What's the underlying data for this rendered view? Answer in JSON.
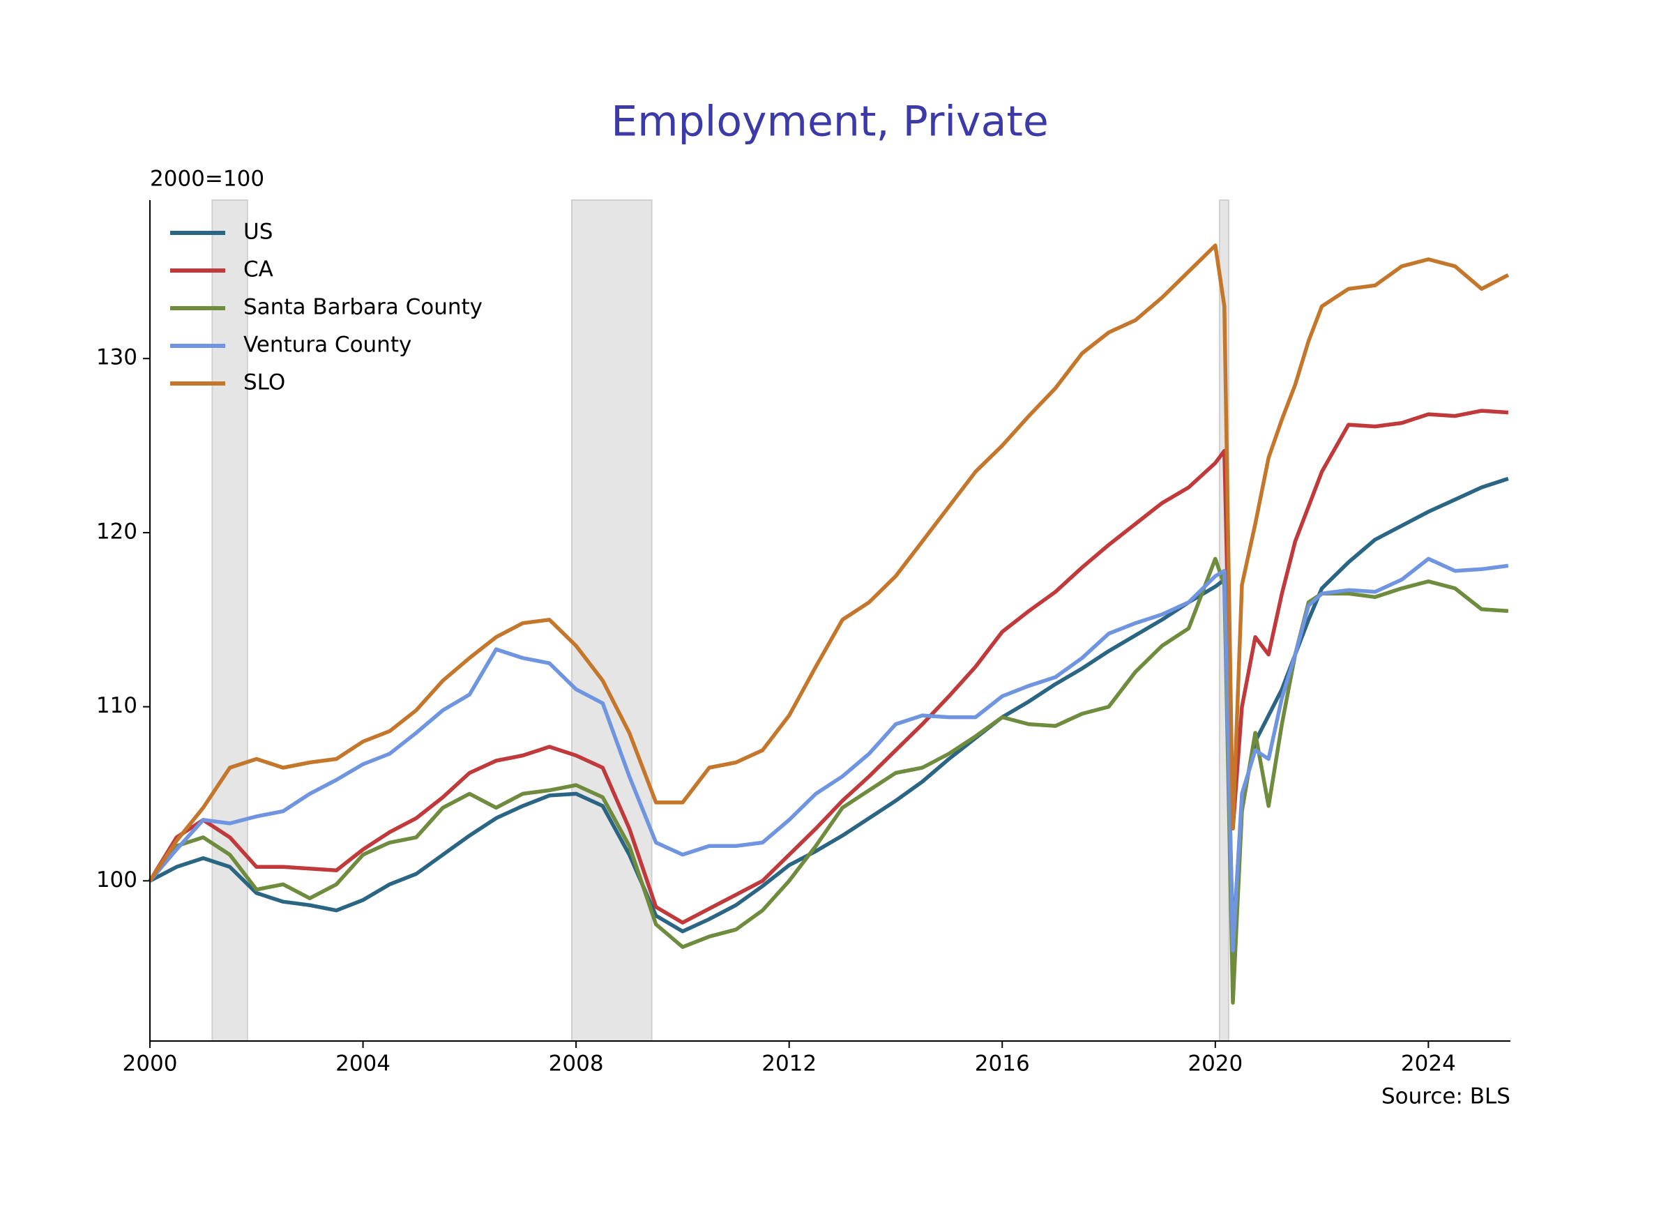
{
  "chart_data": {
    "type": "line",
    "title": "Employment, Private",
    "ylabel": "2000=100",
    "source": "Source: BLS",
    "legend": "upper left",
    "grid": false,
    "xlim": [
      2000,
      2025.54
    ],
    "ylim": [
      90.8,
      139.1
    ],
    "xticks": [
      2000,
      2004,
      2008,
      2012,
      2016,
      2020,
      2024
    ],
    "yticks": [
      100,
      110,
      120,
      130
    ],
    "recessions": [
      [
        2001.17,
        2001.83
      ],
      [
        2007.92,
        2009.42
      ],
      [
        2020.08,
        2020.25
      ]
    ],
    "x": [
      2000,
      2000.5,
      2001,
      2001.5,
      2002,
      2002.5,
      2003,
      2003.5,
      2004,
      2004.5,
      2005,
      2005.5,
      2006,
      2006.5,
      2007,
      2007.5,
      2008,
      2008.5,
      2009,
      2009.5,
      2010,
      2010.5,
      2011,
      2011.5,
      2012,
      2012.5,
      2013,
      2013.5,
      2014,
      2014.5,
      2015,
      2015.5,
      2016,
      2016.5,
      2017,
      2017.5,
      2018,
      2018.5,
      2019,
      2019.5,
      2020,
      2020.17,
      2020.33,
      2020.5,
      2020.75,
      2021,
      2021.25,
      2021.5,
      2021.75,
      2022,
      2022.5,
      2023,
      2023.5,
      2024,
      2024.5,
      2025,
      2025.5
    ],
    "series": [
      {
        "name": "US",
        "color": "#2a6584",
        "values": [
          100,
          100.8,
          101.3,
          100.8,
          99.3,
          98.8,
          98.6,
          98.3,
          98.9,
          99.8,
          100.4,
          101.5,
          102.6,
          103.6,
          104.3,
          104.9,
          105.0,
          104.3,
          101.5,
          98,
          97.1,
          97.8,
          98.6,
          99.7,
          100.9,
          101.7,
          102.6,
          103.6,
          104.6,
          105.7,
          107,
          108.2,
          109.4,
          110.3,
          111.3,
          112.2,
          113.2,
          114.1,
          115,
          116,
          116.9,
          117.3,
          96.5,
          104.5,
          108,
          109.5,
          111,
          113,
          115,
          116.8,
          118.3,
          119.6,
          120.4,
          121.2,
          121.9,
          122.6,
          123.1
        ]
      },
      {
        "name": "CA",
        "color": "#c0393b",
        "values": [
          100,
          102.5,
          103.5,
          102.5,
          100.8,
          100.8,
          100.7,
          100.6,
          101.8,
          102.8,
          103.6,
          104.8,
          106.2,
          106.9,
          107.2,
          107.7,
          107.2,
          106.5,
          103,
          98.5,
          97.6,
          98.4,
          99.2,
          100,
          101.5,
          103,
          104.6,
          106,
          107.5,
          109,
          110.6,
          112.3,
          114.3,
          115.5,
          116.6,
          118,
          119.3,
          120.5,
          121.7,
          122.6,
          124,
          124.7,
          103,
          110,
          114,
          113,
          116.5,
          119.5,
          121.5,
          123.5,
          126.2,
          126.1,
          126.3,
          126.8,
          126.7,
          127,
          126.9
        ]
      },
      {
        "name": "Santa Barbara County",
        "color": "#6f8b3e",
        "values": [
          100,
          102,
          102.5,
          101.5,
          99.5,
          99.8,
          99,
          99.8,
          101.5,
          102.2,
          102.5,
          104.2,
          105,
          104.2,
          105,
          105.2,
          105.5,
          104.8,
          102,
          97.5,
          96.2,
          96.8,
          97.2,
          98.3,
          100,
          102,
          104.2,
          105.2,
          106.2,
          106.5,
          107.3,
          108.3,
          109.4,
          109,
          108.9,
          109.6,
          110,
          112,
          113.5,
          114.5,
          118.5,
          117,
          93,
          104,
          108.5,
          104.3,
          109,
          113,
          116,
          116.5,
          116.5,
          116.3,
          116.8,
          117.2,
          116.8,
          115.6,
          115.5
        ]
      },
      {
        "name": "Ventura County",
        "color": "#6f94e0",
        "values": [
          100,
          101.8,
          103.5,
          103.3,
          103.7,
          104,
          105,
          105.8,
          106.7,
          107.3,
          108.5,
          109.8,
          110.7,
          113.3,
          112.8,
          112.5,
          111,
          110.2,
          106,
          102.2,
          101.5,
          102,
          102,
          102.2,
          103.5,
          105,
          106,
          107.3,
          109,
          109.5,
          109.4,
          109.4,
          110.6,
          111.2,
          111.7,
          112.8,
          114.2,
          114.8,
          115.3,
          116,
          117.5,
          117.8,
          96,
          105,
          107.5,
          107,
          110.5,
          113,
          115.8,
          116.5,
          116.7,
          116.6,
          117.3,
          118.5,
          117.8,
          117.9,
          118.1
        ]
      },
      {
        "name": "SLO",
        "color": "#c4762b",
        "values": [
          100,
          102.3,
          104.2,
          106.5,
          107,
          106.5,
          106.8,
          107,
          108,
          108.6,
          109.8,
          111.5,
          112.8,
          114,
          114.8,
          115,
          113.5,
          111.5,
          108.5,
          104.5,
          104.5,
          106.5,
          106.8,
          107.5,
          109.5,
          112.3,
          115,
          116,
          117.5,
          119.5,
          121.5,
          123.5,
          125,
          126.7,
          128.3,
          130.3,
          131.5,
          132.2,
          133.5,
          135,
          136.5,
          133,
          103,
          117,
          120.5,
          124.3,
          126.5,
          128.5,
          131,
          133,
          134,
          134.2,
          135.3,
          135.7,
          135.3,
          134,
          134.8
        ]
      }
    ]
  }
}
